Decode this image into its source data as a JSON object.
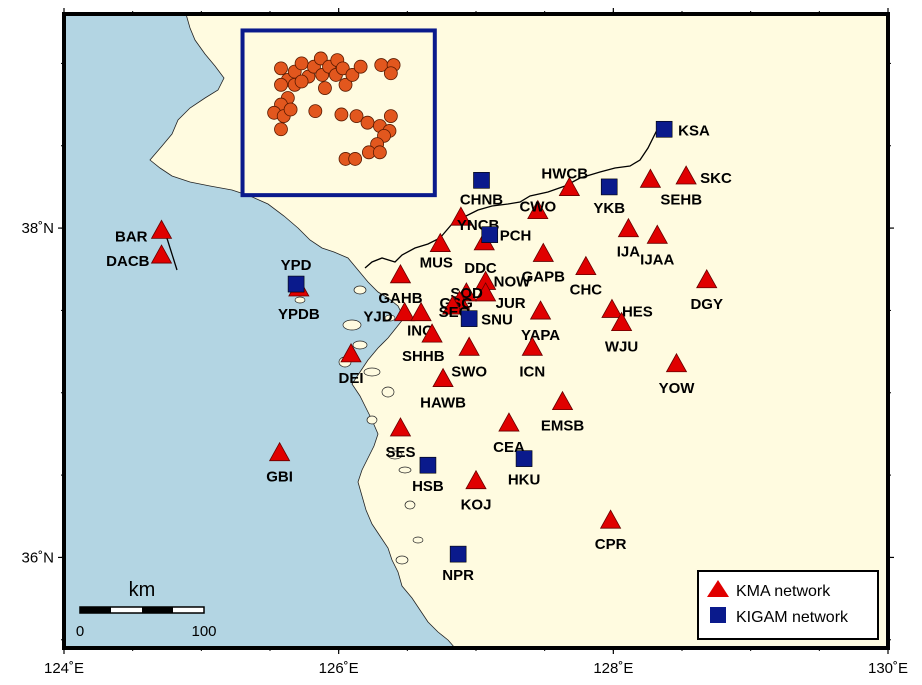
{
  "axes": {
    "x_ticks": [
      {
        "value": 124,
        "label": "124˚E"
      },
      {
        "value": 126,
        "label": "126˚E"
      },
      {
        "value": 128,
        "label": "128˚E"
      },
      {
        "value": 130,
        "label": "130˚E"
      }
    ],
    "y_ticks": [
      {
        "value": 36,
        "label": "36˚N"
      },
      {
        "value": 38,
        "label": "38˚N"
      }
    ],
    "lon_range": [
      124,
      130
    ],
    "lat_range": [
      35.45,
      39.3
    ]
  },
  "colors": {
    "sea": "#b3d5e3",
    "land": "#fffbe0",
    "kma": "#e00000",
    "kigam": "#0a1a8c",
    "event": "#e2571e",
    "box": "#0a1a8c"
  },
  "legend": {
    "kma_label": "KMA network",
    "kigam_label": "KIGAM network"
  },
  "scale_bar": {
    "title": "km",
    "min_label": "0",
    "max_label": "100"
  },
  "study_box": {
    "lon": [
      125.3,
      126.7
    ],
    "lat": [
      38.2,
      39.2
    ]
  },
  "kma_stations": [
    {
      "name": "BAR",
      "lon": 124.71,
      "lat": 37.98
    },
    {
      "name": "DACB",
      "lon": 124.71,
      "lat": 37.83
    },
    {
      "name": "YPDB",
      "lon": 125.71,
      "lat": 37.63
    },
    {
      "name": "GAHB",
      "lon": 126.45,
      "lat": 37.71
    },
    {
      "name": "MUS",
      "lon": 126.74,
      "lat": 37.9
    },
    {
      "name": "YNCB",
      "lon": 126.89,
      "lat": 38.06
    },
    {
      "name": "DDC",
      "lon": 127.06,
      "lat": 37.91
    },
    {
      "name": "CWO",
      "lon": 127.45,
      "lat": 38.1
    },
    {
      "name": "HWCB",
      "lon": 127.68,
      "lat": 38.24
    },
    {
      "name": "SEHB",
      "lon": 128.27,
      "lat": 38.29
    },
    {
      "name": "SKC",
      "lon": 128.53,
      "lat": 38.31
    },
    {
      "name": "IJA",
      "lon": 128.11,
      "lat": 37.99
    },
    {
      "name": "IJAA",
      "lon": 128.32,
      "lat": 37.95
    },
    {
      "name": "GAPB",
      "lon": 127.49,
      "lat": 37.84
    },
    {
      "name": "CHC",
      "lon": 127.8,
      "lat": 37.76
    },
    {
      "name": "DGY",
      "lon": 128.68,
      "lat": 37.68
    },
    {
      "name": "NOW",
      "lon": 127.07,
      "lat": 37.67
    },
    {
      "name": "JUR",
      "lon": 127.07,
      "lat": 37.6
    },
    {
      "name": "SOD",
      "lon": 126.93,
      "lat": 37.6
    },
    {
      "name": "GSG",
      "lon": 126.88,
      "lat": 37.55
    },
    {
      "name": "SEO",
      "lon": 126.83,
      "lat": 37.52
    },
    {
      "name": "YJD",
      "lon": 126.48,
      "lat": 37.48
    },
    {
      "name": "INC",
      "lon": 126.6,
      "lat": 37.48
    },
    {
      "name": "SHHB",
      "lon": 126.68,
      "lat": 37.35
    },
    {
      "name": "YAPA",
      "lon": 127.47,
      "lat": 37.49
    },
    {
      "name": "HES",
      "lon": 127.99,
      "lat": 37.5
    },
    {
      "name": "WJU",
      "lon": 128.06,
      "lat": 37.42
    },
    {
      "name": "SWO",
      "lon": 126.95,
      "lat": 37.27
    },
    {
      "name": "ICN",
      "lon": 127.41,
      "lat": 37.27
    },
    {
      "name": "DEI",
      "lon": 126.09,
      "lat": 37.23
    },
    {
      "name": "YOW",
      "lon": 128.46,
      "lat": 37.17
    },
    {
      "name": "HAWB",
      "lon": 126.76,
      "lat": 37.08
    },
    {
      "name": "EMSB",
      "lon": 127.63,
      "lat": 36.94
    },
    {
      "name": "CEA",
      "lon": 127.24,
      "lat": 36.81
    },
    {
      "name": "SES",
      "lon": 126.45,
      "lat": 36.78
    },
    {
      "name": "GBI",
      "lon": 125.57,
      "lat": 36.63
    },
    {
      "name": "KOJ",
      "lon": 127.0,
      "lat": 36.46
    },
    {
      "name": "CPR",
      "lon": 127.98,
      "lat": 36.22
    }
  ],
  "kigam_stations": [
    {
      "name": "KSA",
      "lon": 128.37,
      "lat": 38.6
    },
    {
      "name": "CHNB",
      "lon": 127.04,
      "lat": 38.29
    },
    {
      "name": "YKB",
      "lon": 127.97,
      "lat": 38.25
    },
    {
      "name": "PCH",
      "lon": 127.1,
      "lat": 37.96
    },
    {
      "name": "YPD",
      "lon": 125.69,
      "lat": 37.66
    },
    {
      "name": "SNU",
      "lon": 126.95,
      "lat": 37.45
    },
    {
      "name": "HSB",
      "lon": 126.65,
      "lat": 36.56
    },
    {
      "name": "HKU",
      "lon": 127.35,
      "lat": 36.6
    },
    {
      "name": "NPR",
      "lon": 126.87,
      "lat": 36.02
    }
  ],
  "events": [
    {
      "lon": 125.58,
      "lat": 38.97
    },
    {
      "lon": 125.63,
      "lat": 38.9
    },
    {
      "lon": 125.68,
      "lat": 38.95
    },
    {
      "lon": 125.73,
      "lat": 39.0
    },
    {
      "lon": 125.78,
      "lat": 38.92
    },
    {
      "lon": 125.82,
      "lat": 38.98
    },
    {
      "lon": 125.87,
      "lat": 39.03
    },
    {
      "lon": 125.88,
      "lat": 38.93
    },
    {
      "lon": 125.93,
      "lat": 38.98
    },
    {
      "lon": 125.98,
      "lat": 38.93
    },
    {
      "lon": 125.99,
      "lat": 39.02
    },
    {
      "lon": 126.03,
      "lat": 38.97
    },
    {
      "lon": 126.05,
      "lat": 38.87
    },
    {
      "lon": 126.1,
      "lat": 38.93
    },
    {
      "lon": 126.16,
      "lat": 38.98
    },
    {
      "lon": 125.68,
      "lat": 38.87
    },
    {
      "lon": 125.58,
      "lat": 38.87
    },
    {
      "lon": 125.73,
      "lat": 38.89
    },
    {
      "lon": 125.9,
      "lat": 38.85
    },
    {
      "lon": 125.63,
      "lat": 38.79
    },
    {
      "lon": 125.58,
      "lat": 38.75
    },
    {
      "lon": 125.53,
      "lat": 38.7
    },
    {
      "lon": 125.6,
      "lat": 38.68
    },
    {
      "lon": 125.65,
      "lat": 38.72
    },
    {
      "lon": 125.83,
      "lat": 38.71
    },
    {
      "lon": 125.58,
      "lat": 38.6
    },
    {
      "lon": 126.31,
      "lat": 38.99
    },
    {
      "lon": 126.4,
      "lat": 38.99
    },
    {
      "lon": 126.38,
      "lat": 38.94
    },
    {
      "lon": 126.02,
      "lat": 38.69
    },
    {
      "lon": 126.13,
      "lat": 38.68
    },
    {
      "lon": 126.21,
      "lat": 38.64
    },
    {
      "lon": 126.3,
      "lat": 38.62
    },
    {
      "lon": 126.38,
      "lat": 38.68
    },
    {
      "lon": 126.37,
      "lat": 38.59
    },
    {
      "lon": 126.33,
      "lat": 38.56
    },
    {
      "lon": 126.28,
      "lat": 38.51
    },
    {
      "lon": 126.22,
      "lat": 38.46
    },
    {
      "lon": 126.05,
      "lat": 38.42
    },
    {
      "lon": 126.12,
      "lat": 38.42
    },
    {
      "lon": 126.3,
      "lat": 38.46
    }
  ]
}
